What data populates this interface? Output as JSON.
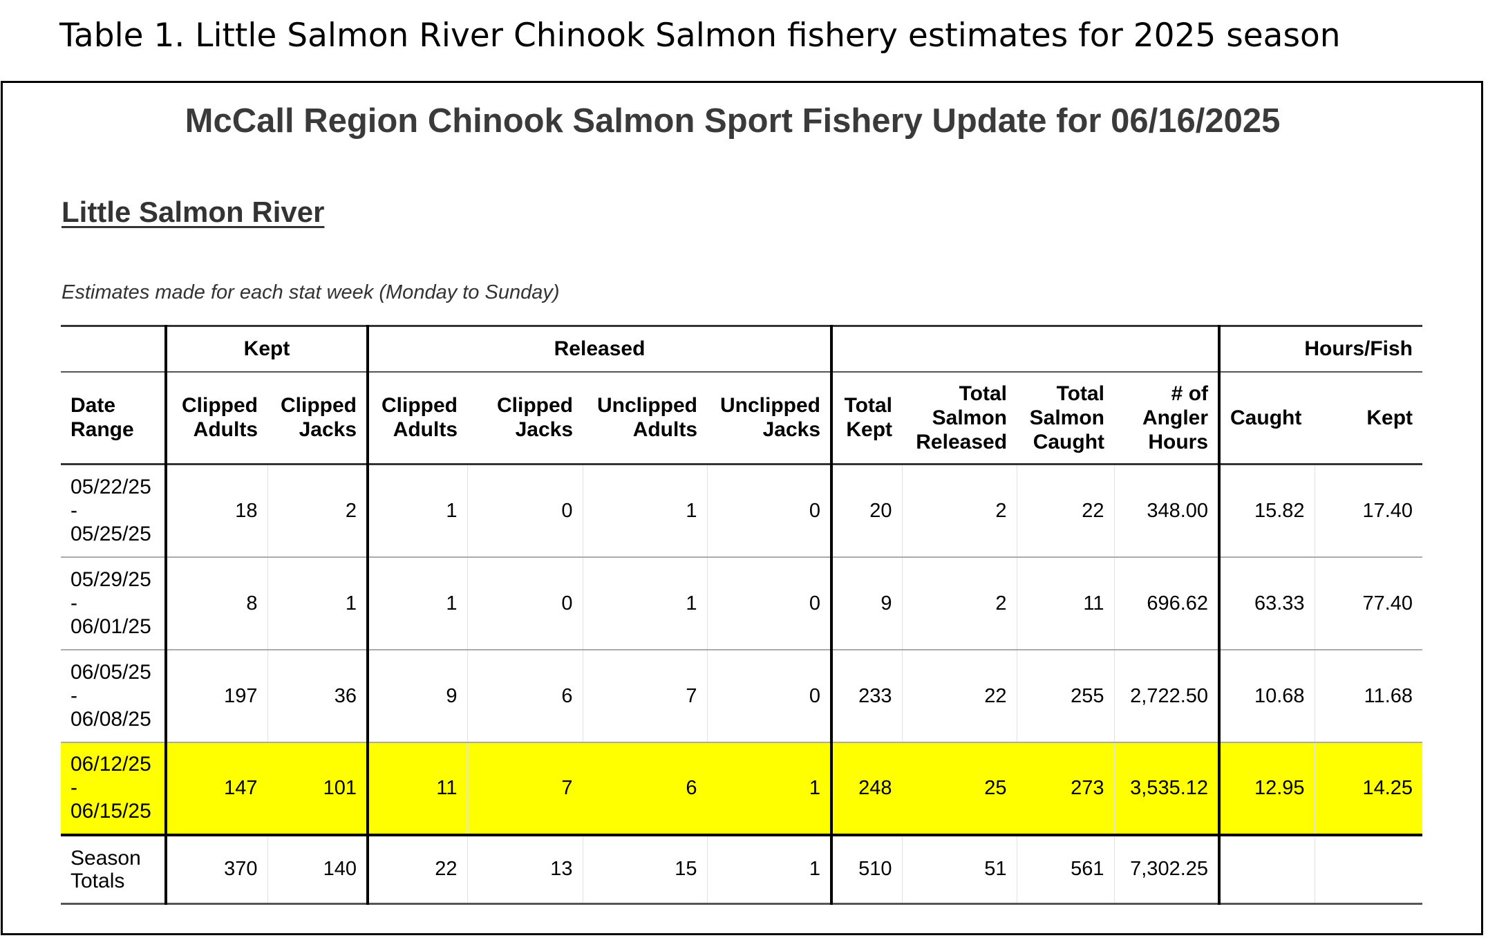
{
  "caption": "Table 1. Little Salmon River Chinook Salmon fishery estimates for 2025 season",
  "report": {
    "title": "McCall Region Chinook Salmon Sport Fishery Update for 06/16/2025",
    "river": "Little Salmon River",
    "note": "Estimates made for each stat week (Monday to Sunday)"
  },
  "table": {
    "group_headers": {
      "kept": "Kept",
      "released": "Released",
      "hours_per_fish": "Hours/Fish"
    },
    "column_headers": {
      "date_range": [
        "Date",
        "Range"
      ],
      "kept_clipped_adults": [
        "Clipped",
        "Adults"
      ],
      "kept_clipped_jacks": [
        "Clipped",
        "Jacks"
      ],
      "rel_clipped_adults": [
        "Clipped",
        "Adults"
      ],
      "rel_clipped_jacks": [
        "Clipped",
        "Jacks"
      ],
      "rel_unclipped_adults": [
        "Unclipped",
        "Adults"
      ],
      "rel_unclipped_jacks": [
        "Unclipped",
        "Jacks"
      ],
      "total_kept": [
        "Total",
        "Kept"
      ],
      "total_released": [
        "Total",
        "Salmon",
        "Released"
      ],
      "total_caught": [
        "Total",
        "Salmon",
        "Caught"
      ],
      "angler_hours": [
        "# of",
        "Angler",
        "Hours"
      ],
      "hpf_caught": "Caught",
      "hpf_kept": "Kept"
    },
    "rows": [
      {
        "date_start": "05/22/25",
        "dash": "-",
        "date_end": "05/25/25",
        "kept_clipped_adults": "18",
        "kept_clipped_jacks": "2",
        "rel_clipped_adults": "1",
        "rel_clipped_jacks": "0",
        "rel_unclipped_adults": "1",
        "rel_unclipped_jacks": "0",
        "total_kept": "20",
        "total_released": "2",
        "total_caught": "22",
        "angler_hours": "348.00",
        "hpf_caught": "15.82",
        "hpf_kept": "17.40"
      },
      {
        "date_start": "05/29/25",
        "dash": "-",
        "date_end": "06/01/25",
        "kept_clipped_adults": "8",
        "kept_clipped_jacks": "1",
        "rel_clipped_adults": "1",
        "rel_clipped_jacks": "0",
        "rel_unclipped_adults": "1",
        "rel_unclipped_jacks": "0",
        "total_kept": "9",
        "total_released": "2",
        "total_caught": "11",
        "angler_hours": "696.62",
        "hpf_caught": "63.33",
        "hpf_kept": "77.40"
      },
      {
        "date_start": "06/05/25",
        "dash": "-",
        "date_end": "06/08/25",
        "kept_clipped_adults": "197",
        "kept_clipped_jacks": "36",
        "rel_clipped_adults": "9",
        "rel_clipped_jacks": "6",
        "rel_unclipped_adults": "7",
        "rel_unclipped_jacks": "0",
        "total_kept": "233",
        "total_released": "22",
        "total_caught": "255",
        "angler_hours": "2,722.50",
        "hpf_caught": "10.68",
        "hpf_kept": "11.68"
      },
      {
        "date_start": "06/12/25",
        "dash": "-",
        "date_end": "06/15/25",
        "kept_clipped_adults": "147",
        "kept_clipped_jacks": "101",
        "rel_clipped_adults": "11",
        "rel_clipped_jacks": "7",
        "rel_unclipped_adults": "6",
        "rel_unclipped_jacks": "1",
        "total_kept": "248",
        "total_released": "25",
        "total_caught": "273",
        "angler_hours": "3,535.12",
        "hpf_caught": "12.95",
        "hpf_kept": "14.25",
        "highlight_color": "#ffff00"
      }
    ],
    "totals": {
      "label": [
        "Season",
        "Totals"
      ],
      "kept_clipped_adults": "370",
      "kept_clipped_jacks": "140",
      "rel_clipped_adults": "22",
      "rel_clipped_jacks": "13",
      "rel_unclipped_adults": "15",
      "rel_unclipped_jacks": "1",
      "total_kept": "510",
      "total_released": "51",
      "total_caught": "561",
      "angler_hours": "7,302.25",
      "hpf_caught": "",
      "hpf_kept": ""
    }
  }
}
